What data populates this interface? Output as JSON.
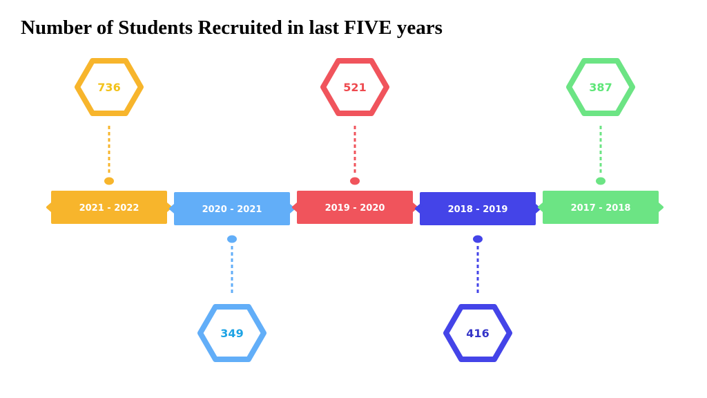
{
  "title": "Number of Students Recruited in last FIVE years",
  "timeline": [
    {
      "period": "2021 - 2022",
      "students": "736",
      "color": "#f7b52c",
      "value_color": "#f2c21b",
      "side": "top"
    },
    {
      "period": "2020 - 2021",
      "students": "349",
      "color": "#62aef8",
      "value_color": "#1da3e4",
      "side": "bottom"
    },
    {
      "period": "2019 - 2020",
      "students": "521",
      "color": "#f0545c",
      "value_color": "#ee4a4f",
      "side": "top"
    },
    {
      "period": "2018 - 2019",
      "students": "416",
      "color": "#4444e8",
      "value_color": "#3535c8",
      "side": "bottom"
    },
    {
      "period": "2017 - 2018",
      "students": "387",
      "color": "#6ce484",
      "value_color": "#5ee678",
      "side": "top"
    }
  ]
}
